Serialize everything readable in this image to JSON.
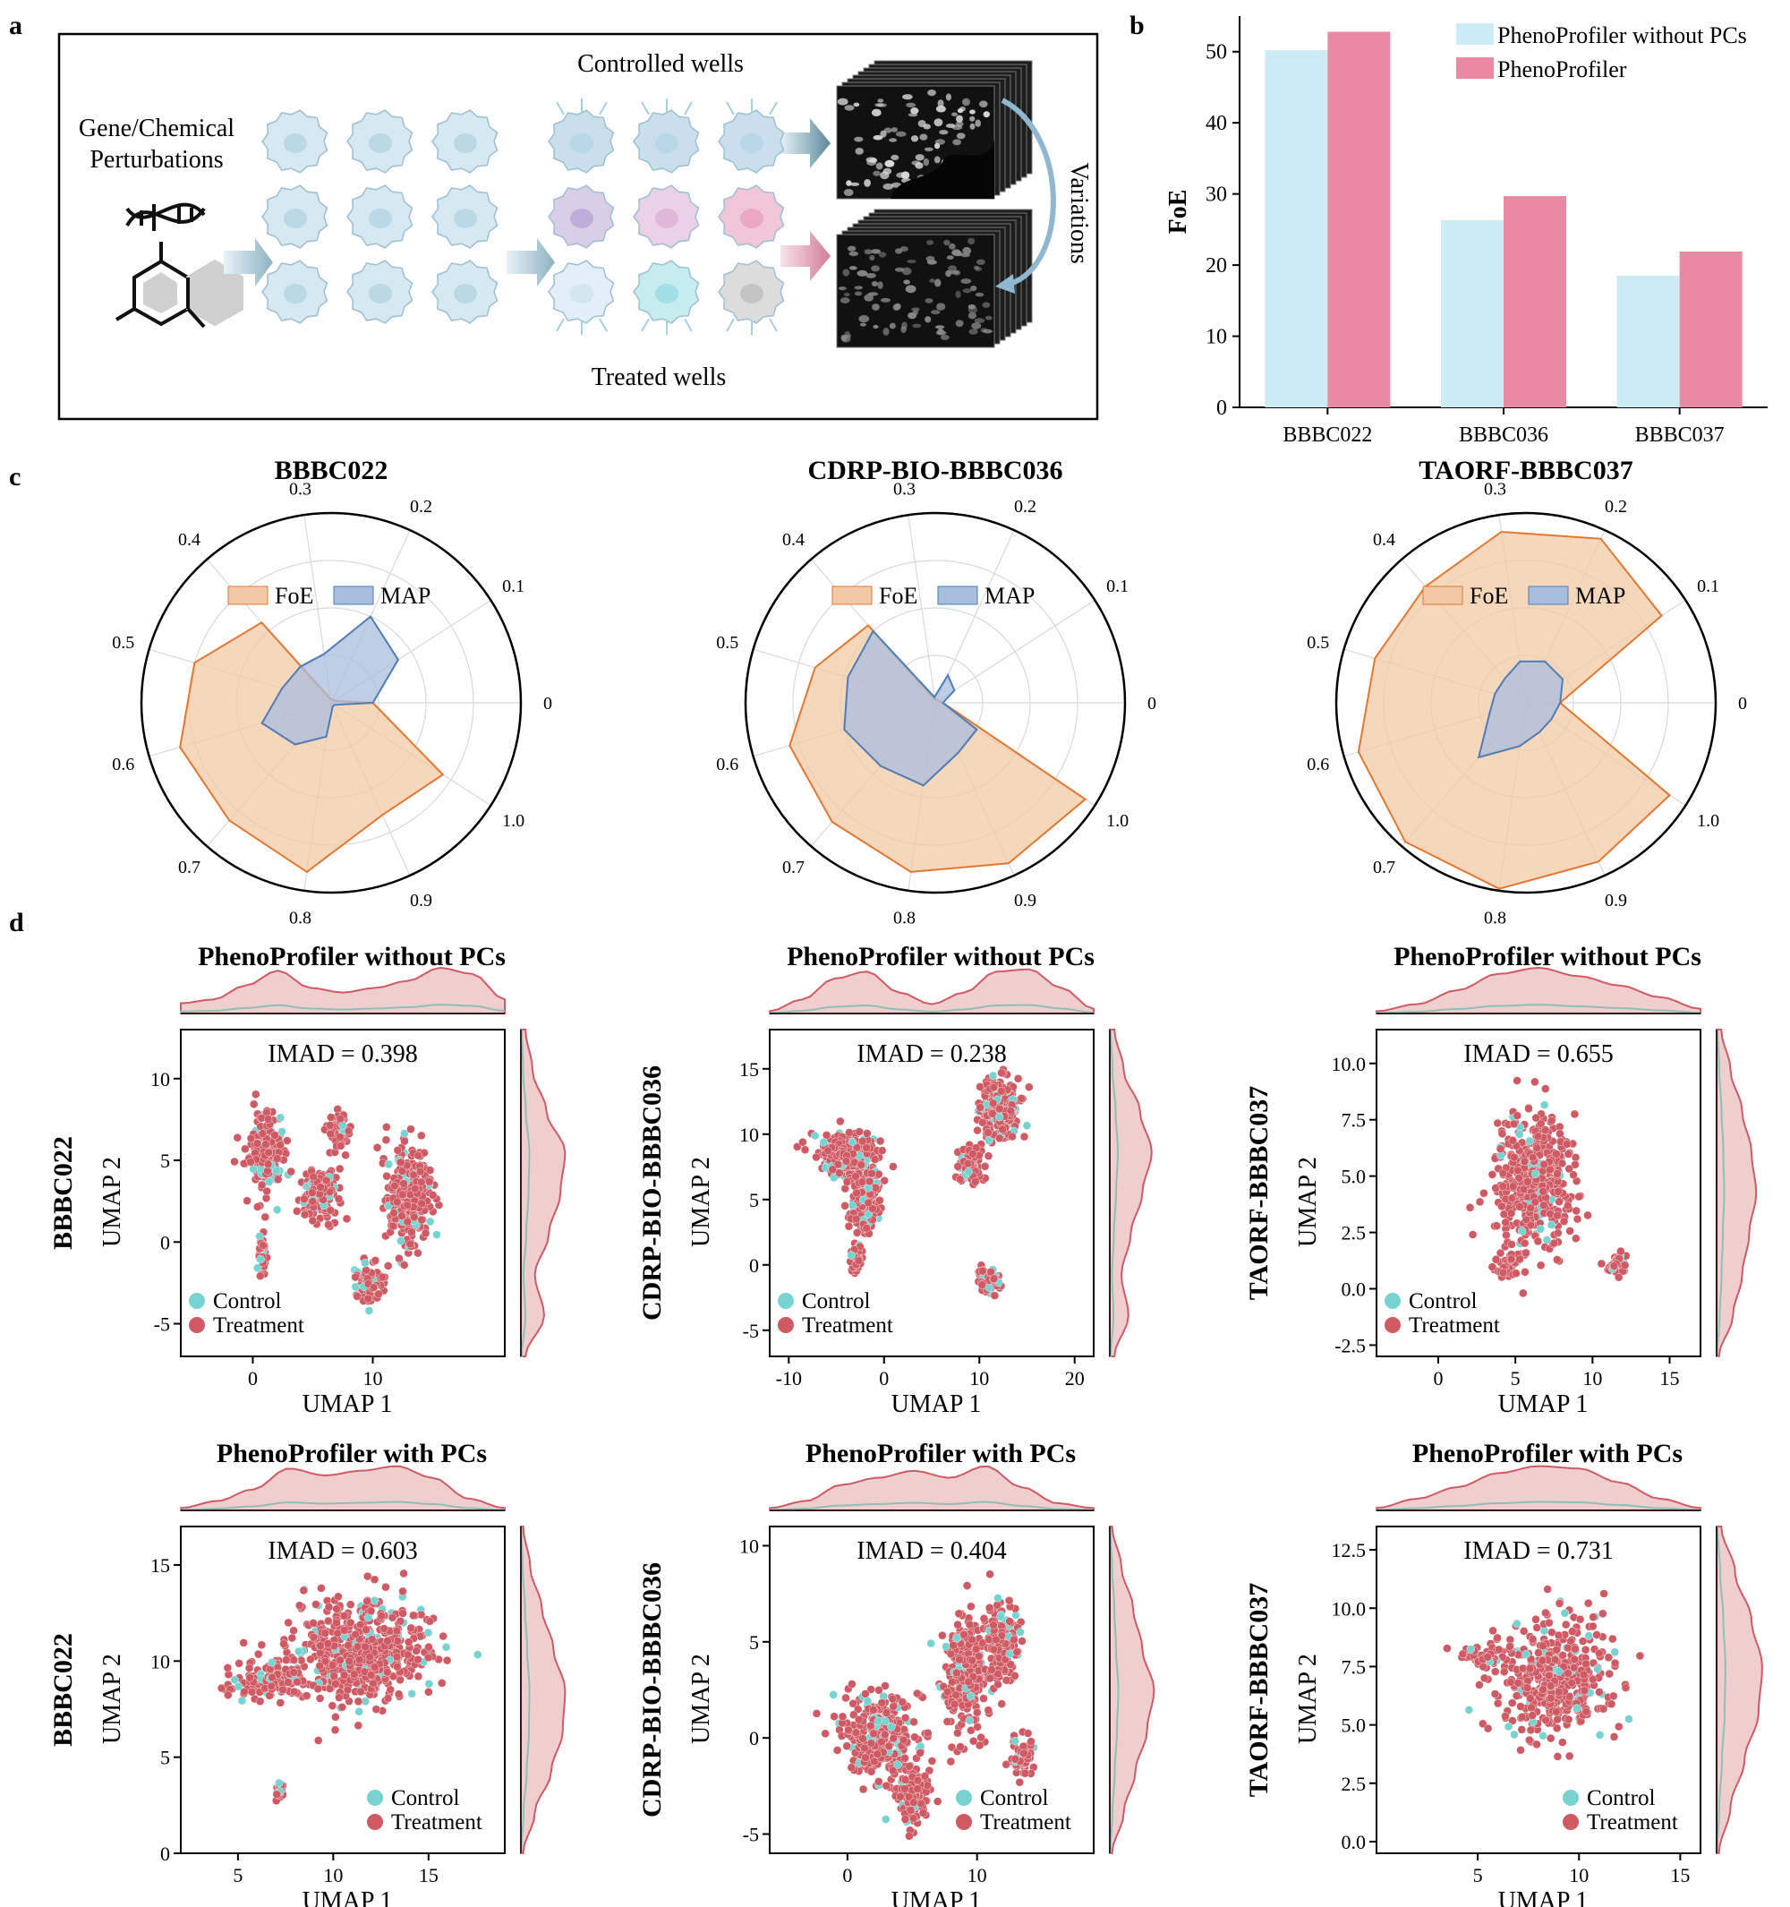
{
  "panel_labels": {
    "a": "a",
    "b": "b",
    "c": "c",
    "d": "d"
  },
  "colors": {
    "no_pcs": "#cdebf4",
    "pheno": "#e98aa3",
    "foe_fill": "#f2c9a4",
    "foe_line": "#e3772f",
    "map_fill": "#a9bedc",
    "map_line": "#4e7cb8",
    "control": "#76d3d2",
    "treatment": "#cf5a63",
    "kde_line": "#cf5a63"
  },
  "panel_a": {
    "perturbation_label_1": "Gene/Chemical",
    "perturbation_label_2": "Perturbations",
    "controlled_label": "Controlled wells",
    "treated_label": "Treated wells",
    "variations_label": "Variations",
    "dna_icon": "dna-icon",
    "molecule_icon": "molecule-icon",
    "cell_icon": "cell-icon",
    "microscopy_icon": "microscopy-image-stack"
  },
  "chart_data": [
    {
      "id": "b",
      "type": "bar",
      "title": "",
      "ylabel": "FoE",
      "xlabel": "",
      "categories": [
        "BBBC022",
        "BBBC036",
        "BBBC037"
      ],
      "ylim": [
        0,
        55
      ],
      "yticks": [
        0,
        10,
        20,
        30,
        40,
        50
      ],
      "legend": "top-right",
      "series": [
        {
          "name": "PhenoProfiler without PCs",
          "values": [
            50.2,
            26.3,
            18.5
          ]
        },
        {
          "name": "PhenoProfiler",
          "values": [
            52.8,
            29.7,
            21.9
          ]
        }
      ]
    },
    {
      "id": "c",
      "type": "radar",
      "angle_labels": [
        "0",
        "0.1",
        "0.2",
        "0.3",
        "0.4",
        "0.5",
        "0.6",
        "0.7",
        "0.8",
        "0.9",
        "1.0"
      ],
      "legend": [
        "FoE",
        "MAP"
      ],
      "plots": [
        {
          "title": "BBBC022",
          "foe": [
            0.22,
            0.02,
            0.02,
            0.02,
            0.56,
            0.75,
            0.83,
            0.82,
            0.9,
            0.65,
            0.7
          ],
          "map": [
            0.22,
            0.42,
            0.5,
            0.26,
            0.25,
            0.27,
            0.38,
            0.29,
            0.18,
            0.02,
            0.02
          ]
        },
        {
          "title": "CDRP-BIO-BBBC036",
          "foe": [
            0.04,
            0.02,
            0.02,
            0.02,
            0.54,
            0.66,
            0.8,
            0.83,
            0.9,
            0.93,
            0.94
          ],
          "map": [
            0.04,
            0.12,
            0.16,
            0.03,
            0.5,
            0.48,
            0.5,
            0.44,
            0.44,
            0.29,
            0.26
          ]
        },
        {
          "title": "TAORF-BBBC037",
          "foe": [
            0.18,
            0.85,
            0.95,
            0.91,
            0.81,
            0.83,
            0.92,
            0.97,
            0.99,
            0.92,
            0.9
          ],
          "map": [
            0.18,
            0.23,
            0.24,
            0.22,
            0.17,
            0.17,
            0.2,
            0.38,
            0.23,
            0.17,
            0.16
          ]
        }
      ]
    },
    {
      "id": "d",
      "type": "scatter",
      "xlabel": "UMAP 1",
      "ylabel": "UMAP 2",
      "legend": [
        "Control",
        "Treatment"
      ],
      "plots": [
        {
          "row_label": "BBBC022",
          "title": "PhenoProfiler without PCs",
          "imad": "IMAD = 0.398",
          "xlim": [
            -6,
            21
          ],
          "ylim": [
            -7,
            13
          ],
          "xticks": [
            "0",
            "10"
          ],
          "xtickvals": [
            0,
            10
          ],
          "yticks": [
            "-5",
            "0",
            "5",
            "10"
          ],
          "ytickvals": [
            -5,
            0,
            5,
            10
          ],
          "clusters": [
            [
              1,
              5.5,
              1.6,
              2.2
            ],
            [
              7,
              6.8,
              1,
              1
            ],
            [
              5.6,
              2.8,
              1.4,
              1.6
            ],
            [
              13,
              2.8,
              1.8,
              3
            ],
            [
              9.7,
              -2.5,
              1,
              1.4
            ],
            [
              0.8,
              -0.8,
              0.4,
              1
            ]
          ],
          "xkde": [
            0.22,
            0.3,
            0.6,
            0.92,
            0.55,
            0.45,
            0.55,
            0.7,
            0.98,
            0.85,
            0.3
          ],
          "ykde": [
            0.1,
            0.5,
            0.3,
            0.6,
            0.85,
            0.95,
            0.55,
            0.25,
            0.1
          ]
        },
        {
          "row_label": "CDRP-BIO-BBBC036",
          "title": "PhenoProfiler without PCs",
          "imad": "IMAD = 0.238",
          "xlim": [
            -12,
            22
          ],
          "ylim": [
            -7,
            18
          ],
          "xticks": [
            "-10",
            "0",
            "10",
            "20"
          ],
          "xtickvals": [
            -10,
            0,
            10,
            20
          ],
          "yticks": [
            "-5",
            "0",
            "5",
            "10",
            "15"
          ],
          "ytickvals": [
            -5,
            0,
            5,
            10,
            15
          ],
          "clusters": [
            [
              -4,
              8.4,
              3,
              1.6
            ],
            [
              -2,
              5,
              1.5,
              2.4
            ],
            [
              12,
              12,
              2,
              2.2
            ],
            [
              9,
              7.5,
              1.2,
              1.2
            ],
            [
              11,
              -1.3,
              1.2,
              1
            ],
            [
              -3,
              0.5,
              0.6,
              1
            ]
          ],
          "xkde": [
            0.05,
            0.3,
            0.75,
            0.9,
            0.45,
            0.2,
            0.45,
            0.9,
            0.95,
            0.55,
            0.1
          ],
          "ykde": [
            0.1,
            0.4,
            0.25,
            0.45,
            0.7,
            0.9,
            0.65,
            0.3,
            0.1
          ]
        },
        {
          "row_label": "TAORF-BBBC037",
          "title": "PhenoProfiler without PCs",
          "imad": "IMAD = 0.655",
          "xlim": [
            -4,
            17
          ],
          "ylim": [
            -3,
            11.5
          ],
          "xticks": [
            "0",
            "5",
            "10",
            "15"
          ],
          "xtickvals": [
            0,
            5,
            10,
            15
          ],
          "yticks": [
            "-2.5",
            "0.0",
            "2.5",
            "5.0",
            "7.5",
            "10.0"
          ],
          "ytickvals": [
            -2.5,
            0,
            2.5,
            5,
            7.5,
            10
          ],
          "clusters": [
            [
              6.3,
              4.7,
              2.6,
              3
            ],
            [
              11.5,
              1.1,
              0.7,
              0.5
            ],
            [
              4.5,
              1,
              1,
              0.5
            ]
          ],
          "xkde": [
            0.05,
            0.2,
            0.5,
            0.85,
            0.98,
            0.8,
            0.6,
            0.35,
            0.1
          ],
          "ykde": [
            0.05,
            0.35,
            0.55,
            0.7,
            0.85,
            0.75,
            0.55,
            0.3,
            0.1
          ]
        },
        {
          "row_label": "BBBC022",
          "title": "PhenoProfiler with PCs",
          "imad": "IMAD = 0.603",
          "xlim": [
            2,
            19
          ],
          "ylim": [
            0,
            17
          ],
          "xticks": [
            "5",
            "10",
            "15"
          ],
          "xtickvals": [
            5,
            10,
            15
          ],
          "yticks": [
            "0",
            "5",
            "10",
            "15"
          ],
          "ytickvals": [
            0,
            5,
            10,
            15
          ],
          "clusters": [
            [
              11.5,
              10.5,
              3.4,
              2.8
            ],
            [
              7,
              9,
              2.4,
              0.9
            ],
            [
              12.8,
              15.8,
              0.5,
              0.4
            ],
            [
              7.2,
              3.3,
              0.2,
              0.4
            ]
          ],
          "xkde": [
            0.05,
            0.2,
            0.45,
            0.9,
            0.75,
            0.85,
            0.95,
            0.7,
            0.25,
            0.05
          ],
          "ykde": [
            0.05,
            0.3,
            0.65,
            0.9,
            0.95,
            0.7,
            0.45,
            0.2,
            0.05
          ]
        },
        {
          "row_label": "CDRP-BIO-BBBC036",
          "title": "PhenoProfiler with PCs",
          "imad": "IMAD = 0.404",
          "xlim": [
            -6,
            19
          ],
          "ylim": [
            -6,
            11
          ],
          "xticks": [
            "0",
            "10"
          ],
          "xtickvals": [
            0,
            10
          ],
          "yticks": [
            "-5",
            "0",
            "5",
            "10"
          ],
          "ytickvals": [
            -5,
            0,
            5,
            10
          ],
          "clusters": [
            [
              2.5,
              0,
              2.8,
              2.2
            ],
            [
              5,
              -3,
              1.2,
              1.6
            ],
            [
              9,
              3.5,
              1.8,
              2.8
            ],
            [
              12,
              5,
              1.3,
              2
            ],
            [
              13.5,
              -1,
              0.8,
              1
            ]
          ],
          "xkde": [
            0.05,
            0.2,
            0.55,
            0.7,
            0.85,
            0.7,
            0.95,
            0.5,
            0.15,
            0.05
          ],
          "ykde": [
            0.05,
            0.3,
            0.55,
            0.8,
            0.95,
            0.7,
            0.5,
            0.25,
            0.05
          ]
        },
        {
          "row_label": "TAORF-BBBC037",
          "title": "PhenoProfiler with PCs",
          "imad": "IMAD = 0.731",
          "xlim": [
            0,
            16
          ],
          "ylim": [
            -0.5,
            13.5
          ],
          "xticks": [
            "5",
            "10",
            "15"
          ],
          "xtickvals": [
            5,
            10,
            15
          ],
          "yticks": [
            "0.0",
            "2.5",
            "5.0",
            "7.5",
            "10.0",
            "12.5"
          ],
          "ytickvals": [
            0,
            2.5,
            5,
            7.5,
            10,
            12.5
          ],
          "clusters": [
            [
              8.8,
              7,
              2.8,
              2.6
            ],
            [
              5,
              8,
              1.2,
              0.4
            ]
          ],
          "xkde": [
            0.05,
            0.25,
            0.5,
            0.8,
            0.95,
            0.9,
            0.6,
            0.25,
            0.05
          ],
          "ykde": [
            0.05,
            0.3,
            0.6,
            0.9,
            0.98,
            0.75,
            0.4,
            0.1
          ]
        }
      ]
    }
  ]
}
